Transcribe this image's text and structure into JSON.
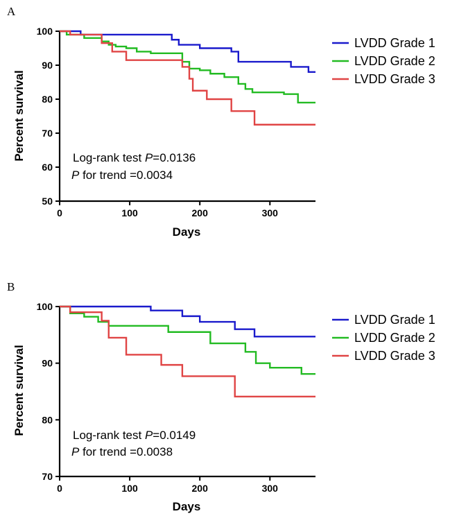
{
  "chart_data": [
    {
      "panel": "A",
      "type": "line",
      "step": true,
      "xlabel": "Days",
      "ylabel": "Percent survival",
      "xlim": [
        0,
        365
      ],
      "ylim": [
        50,
        100
      ],
      "xticks": [
        0,
        100,
        200,
        300
      ],
      "yticks": [
        50,
        60,
        70,
        80,
        90,
        100
      ],
      "legend_position": "right",
      "annotation": {
        "line1_prefix": "Log-rank test ",
        "line1_p": "P",
        "line1_suffix": "=0.0136",
        "line2_p": "P",
        "line2_suffix": " for trend =0.0034"
      },
      "series": [
        {
          "name": "LVDD Grade 1",
          "color": "#1a1acc",
          "x": [
            0,
            30,
            160,
            170,
            200,
            245,
            255,
            330,
            355,
            365
          ],
          "y": [
            100,
            99,
            97.5,
            96,
            95,
            94,
            91,
            89.5,
            88,
            88
          ]
        },
        {
          "name": "LVDD Grade 2",
          "color": "#22bb22",
          "x": [
            0,
            10,
            35,
            60,
            70,
            80,
            95,
            110,
            130,
            175,
            185,
            200,
            215,
            235,
            255,
            265,
            275,
            320,
            340,
            365
          ],
          "y": [
            100,
            99,
            98,
            97,
            96,
            95.5,
            95,
            94,
            93.5,
            91,
            89,
            88.5,
            87.5,
            86.5,
            84.5,
            83,
            82,
            81.5,
            79,
            79
          ]
        },
        {
          "name": "LVDD Grade 3",
          "color": "#e04444",
          "x": [
            0,
            15,
            60,
            75,
            95,
            175,
            185,
            190,
            210,
            245,
            278,
            365
          ],
          "y": [
            100,
            99,
            96.5,
            94,
            91.5,
            89.5,
            86,
            82.5,
            80,
            76.5,
            72.5,
            72.5
          ]
        }
      ]
    },
    {
      "panel": "B",
      "type": "line",
      "step": true,
      "xlabel": "Days",
      "ylabel": "Percent survival",
      "xlim": [
        0,
        365
      ],
      "ylim": [
        70,
        100
      ],
      "xticks": [
        0,
        100,
        200,
        300
      ],
      "yticks": [
        70,
        80,
        90,
        100
      ],
      "legend_position": "right",
      "annotation": {
        "line1_prefix": "Log-rank test ",
        "line1_p": "P",
        "line1_suffix": "=0.0149",
        "line2_p": "P",
        "line2_suffix": " for trend =0.0038"
      },
      "series": [
        {
          "name": "LVDD Grade 1",
          "color": "#1a1acc",
          "x": [
            0,
            130,
            175,
            200,
            250,
            278,
            365
          ],
          "y": [
            100,
            99.3,
            98.3,
            97.3,
            96,
            94.7,
            94.7
          ]
        },
        {
          "name": "LVDD Grade 2",
          "color": "#22bb22",
          "x": [
            0,
            15,
            35,
            55,
            70,
            100,
            155,
            175,
            215,
            240,
            265,
            280,
            300,
            345,
            365
          ],
          "y": [
            100,
            98.8,
            98.2,
            97.3,
            96.6,
            96.6,
            95.5,
            95.5,
            93.5,
            93.5,
            92,
            90,
            89.2,
            88.1,
            88.1
          ]
        },
        {
          "name": "LVDD Grade 3",
          "color": "#e04444",
          "x": [
            0,
            15,
            60,
            70,
            95,
            145,
            175,
            250,
            365
          ],
          "y": [
            100,
            99,
            97.5,
            94.5,
            91.5,
            89.7,
            87.7,
            84.1,
            84.1
          ]
        }
      ]
    }
  ]
}
